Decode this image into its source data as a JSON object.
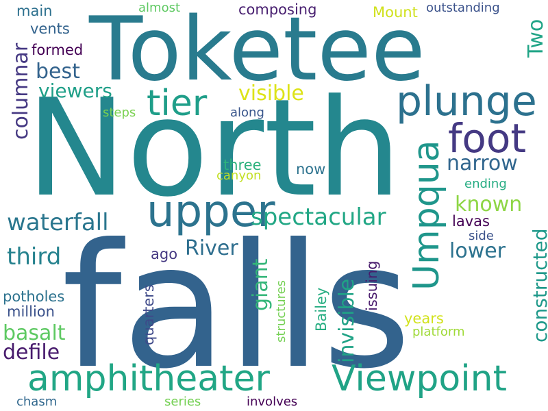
{
  "words": [
    {
      "text": "North",
      "color": "#24878e"
    },
    {
      "text": "falls",
      "color": "#33638d"
    },
    {
      "text": "Toketee",
      "color": "#297b8e"
    },
    {
      "text": "plunge",
      "color": "#2c718e"
    },
    {
      "text": "amphitheater",
      "color": "#21a685"
    },
    {
      "text": "Viewpoint",
      "color": "#20a386"
    },
    {
      "text": "upper",
      "color": "#2c738e"
    },
    {
      "text": "tier",
      "color": "#1f9e89"
    },
    {
      "text": "foot",
      "color": "#443983"
    },
    {
      "text": "Umpqua",
      "color": "#1f968b"
    },
    {
      "text": "spectacular",
      "color": "#22a785"
    },
    {
      "text": "waterfall",
      "color": "#2a768e"
    },
    {
      "text": "River",
      "color": "#2e6e8e"
    },
    {
      "text": "third",
      "color": "#26828e"
    },
    {
      "text": "narrow",
      "color": "#31668e"
    },
    {
      "text": "known",
      "color": "#8ed645"
    },
    {
      "text": "lower",
      "color": "#2c728e"
    },
    {
      "text": "visible",
      "color": "#dde318"
    },
    {
      "text": "viewers",
      "color": "#1f9f88"
    },
    {
      "text": "best",
      "color": "#33638d"
    },
    {
      "text": "formed",
      "color": "#440154"
    },
    {
      "text": "vents",
      "color": "#33638d"
    },
    {
      "text": "main",
      "color": "#2d708e"
    },
    {
      "text": "almost",
      "color": "#5ec962"
    },
    {
      "text": "composing",
      "color": "#481f70"
    },
    {
      "text": "Mount",
      "color": "#d0e11c"
    },
    {
      "text": "outstanding",
      "color": "#3b528b"
    },
    {
      "text": "Two",
      "color": "#20a486"
    },
    {
      "text": "columnar",
      "color": "#453882"
    },
    {
      "text": "steps",
      "color": "#7ad151"
    },
    {
      "text": "along",
      "color": "#39568c"
    },
    {
      "text": "three",
      "color": "#2db27d"
    },
    {
      "text": "now",
      "color": "#2c728e"
    },
    {
      "text": "canyon",
      "color": "#c2df23"
    },
    {
      "text": "ending",
      "color": "#25ac82"
    },
    {
      "text": "constructed",
      "color": "#1f998a"
    },
    {
      "text": "lavas",
      "color": "#440154"
    },
    {
      "text": "side",
      "color": "#3b528b"
    },
    {
      "text": "ago",
      "color": "#453882"
    },
    {
      "text": "giant",
      "color": "#34b679"
    },
    {
      "text": "invisible",
      "color": "#20a386"
    },
    {
      "text": "issuing",
      "color": "#481a6c"
    },
    {
      "text": "Bailey",
      "color": "#26ad81"
    },
    {
      "text": "structures",
      "color": "#75d054"
    },
    {
      "text": "quarters",
      "color": "#3e4989"
    },
    {
      "text": "potholes",
      "color": "#2c728e"
    },
    {
      "text": "million",
      "color": "#3b528b"
    },
    {
      "text": "years",
      "color": "#d2e21b"
    },
    {
      "text": "basalt",
      "color": "#5ec962"
    },
    {
      "text": "platform",
      "color": "#a0da39"
    },
    {
      "text": "defile",
      "color": "#481b6d"
    },
    {
      "text": "chasm",
      "color": "#31688e"
    },
    {
      "text": "series",
      "color": "#75d054"
    },
    {
      "text": "involves",
      "color": "#440154"
    }
  ]
}
